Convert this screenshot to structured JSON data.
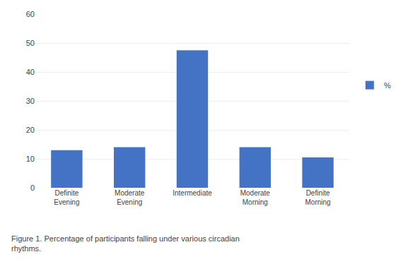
{
  "chart_data": {
    "type": "bar",
    "categories": [
      "Definite\nEvening",
      "Moderate\nEvening",
      "Intermediate",
      "Moderate\nMorning",
      "Definite\nMorning"
    ],
    "series": [
      {
        "name": "%",
        "color": "#4472C4",
        "values": [
          13,
          14,
          47.5,
          14,
          10.5
        ]
      }
    ],
    "ylim": [
      0,
      60
    ],
    "yticks": [
      0,
      10,
      20,
      30,
      40,
      50,
      60
    ],
    "grid": true,
    "legend": "right",
    "annotations": [
      "Figure 1. Percentage of participants falling under various circadian\nrhythms."
    ]
  }
}
